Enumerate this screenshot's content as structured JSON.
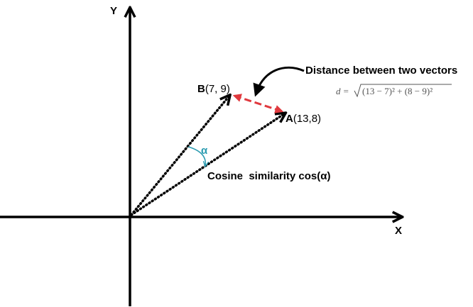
{
  "axes": {
    "y": "Y",
    "x": "X"
  },
  "points": [
    {
      "name": "B",
      "coords": "(7, 9)"
    },
    {
      "name": "A",
      "coords": "(13,8)"
    }
  ],
  "angle": "α",
  "cosine_label": "Cosine  similarity cos(α)",
  "distance_label": "Distance between two vectors",
  "formula": {
    "lhs": "d =",
    "radicand": "(13 − 7)² + (8 − 9)²"
  }
}
